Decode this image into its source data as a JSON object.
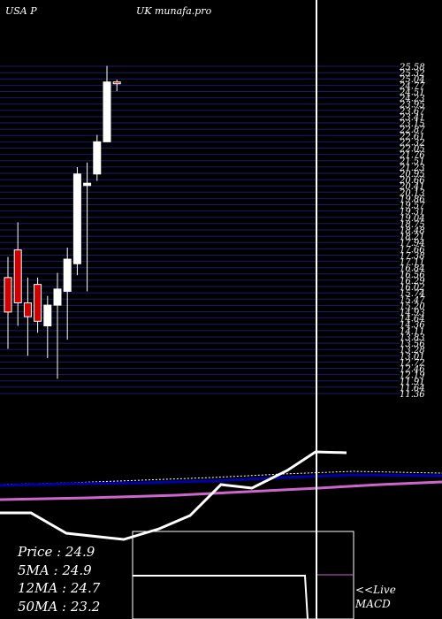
{
  "header": {
    "left": "USA P",
    "center": "UK munafa.pro"
  },
  "info": {
    "price": "Price   : 24.9",
    "ma5": "5MA : 24.9",
    "ma12": "12MA : 24.7",
    "ma50": "50MA : 23.2"
  },
  "live": {
    "line1": "<<Live",
    "line2": "MACD"
  },
  "colors": {
    "background": "#000000",
    "grid": "#1a1a6e",
    "bull": "#ffffff",
    "bear": "#cc0000",
    "ma_blue": "#0000aa",
    "ma_pink": "#cc66cc",
    "macd": "#ffffff"
  },
  "chart_data": {
    "type": "candlestick",
    "price_axis": {
      "ylim": [
        11.36,
        25.58
      ],
      "tick_labels": [
        "25.58",
        "25.32",
        "25.04",
        "24.77",
        "24.51",
        "24.23",
        "23.95",
        "23.67",
        "23.41",
        "23.15",
        "22.87",
        "22.61",
        "22.32",
        "22.05",
        "21.76",
        "21.51",
        "21.23",
        "20.95",
        "20.66",
        "20.41",
        "20.13",
        "19.86",
        "19.57",
        "19.31",
        "19.04",
        "18.75",
        "18.48",
        "18.21",
        "17.94",
        "17.66",
        "17.38",
        "17.11",
        "16.84",
        "16.56",
        "16.29",
        "16.02",
        "15.74",
        "15.47",
        "15.20",
        "14.93",
        "14.64",
        "14.36",
        "14.11",
        "13.83",
        "13.56",
        "13.28",
        "13.01",
        "12.72",
        "12.46",
        "12.19",
        "11.91",
        "11.64",
        "11.36"
      ]
    },
    "candles": [
      {
        "open": 16.4,
        "high": 17.3,
        "low": 13.3,
        "close": 14.9,
        "dir": "bear"
      },
      {
        "open": 17.6,
        "high": 18.8,
        "low": 14.3,
        "close": 15.3,
        "dir": "bear"
      },
      {
        "open": 15.3,
        "high": 16.4,
        "low": 13.0,
        "close": 14.7,
        "dir": "bear"
      },
      {
        "open": 16.1,
        "high": 16.4,
        "low": 14.0,
        "close": 14.5,
        "dir": "bear"
      },
      {
        "open": 14.3,
        "high": 15.6,
        "low": 12.9,
        "close": 15.2,
        "dir": "bull"
      },
      {
        "open": 15.2,
        "high": 16.6,
        "low": 12.0,
        "close": 15.9,
        "dir": "bull"
      },
      {
        "open": 15.8,
        "high": 17.7,
        "low": 13.7,
        "close": 17.2,
        "dir": "bull"
      },
      {
        "open": 17.0,
        "high": 21.2,
        "low": 16.5,
        "close": 20.9,
        "dir": "bull"
      },
      {
        "open": 20.4,
        "high": 21.4,
        "low": 15.8,
        "close": 20.5,
        "dir": "bull"
      },
      {
        "open": 20.9,
        "high": 22.6,
        "low": 20.6,
        "close": 22.3,
        "dir": "bull"
      },
      {
        "open": 22.3,
        "high": 25.6,
        "low": 22.3,
        "close": 24.9,
        "dir": "bull"
      },
      {
        "open": 24.9,
        "high": 25.0,
        "low": 24.5,
        "close": 24.9,
        "dir": "bear"
      }
    ],
    "moving_averages": [
      {
        "name": "5MA",
        "color": "blue"
      },
      {
        "name": "50MA",
        "color": "pink"
      }
    ],
    "macd": {
      "line_color": "white",
      "signal_color": "white"
    }
  }
}
